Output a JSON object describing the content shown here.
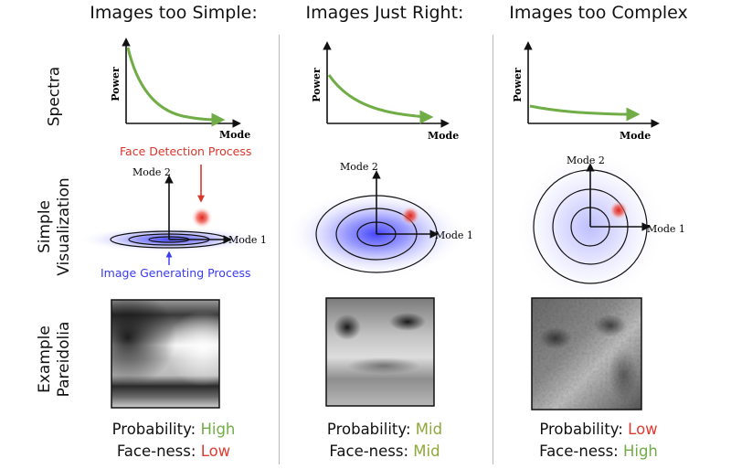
{
  "columns": [
    {
      "title": "Images too Simple:",
      "stat": {
        "probability_label": "Probability:",
        "probability_value": "High",
        "probability_color": "#70ad47",
        "faceness_label": "Face-ness:",
        "faceness_value": "Low",
        "faceness_color": "#e03c31"
      }
    },
    {
      "title": "Images Just Right:",
      "stat": {
        "probability_label": "Probability:",
        "probability_value": "Mid",
        "probability_color": "#8fa83a",
        "faceness_label": "Face-ness:",
        "faceness_value": "Mid",
        "faceness_color": "#8fa83a"
      }
    },
    {
      "title": "Images too Complex",
      "stat": {
        "probability_label": "Probability:",
        "probability_value": "Low",
        "probability_color": "#e03c31",
        "faceness_label": "Face-ness:",
        "faceness_value": "High",
        "faceness_color": "#70ad47"
      }
    }
  ],
  "rows": {
    "spectra": "Spectra",
    "visualization_line1": "Simple",
    "visualization_line2": "Visualization",
    "pareidolia_line1": "Example",
    "pareidolia_line2": "Pareidolia"
  },
  "plot": {
    "ylabel": "Power",
    "xlabel": "Mode"
  },
  "viz": {
    "mode1": "Mode 1",
    "mode2": "Mode 2"
  },
  "annotations": {
    "face_detection": "Face Detection Process",
    "image_generating": "Image Generating Process"
  },
  "colors": {
    "curve": "#70ad47",
    "face_red": "#d9362b",
    "process_blue": "#3a3af0",
    "divider": "#b8b8b8"
  }
}
